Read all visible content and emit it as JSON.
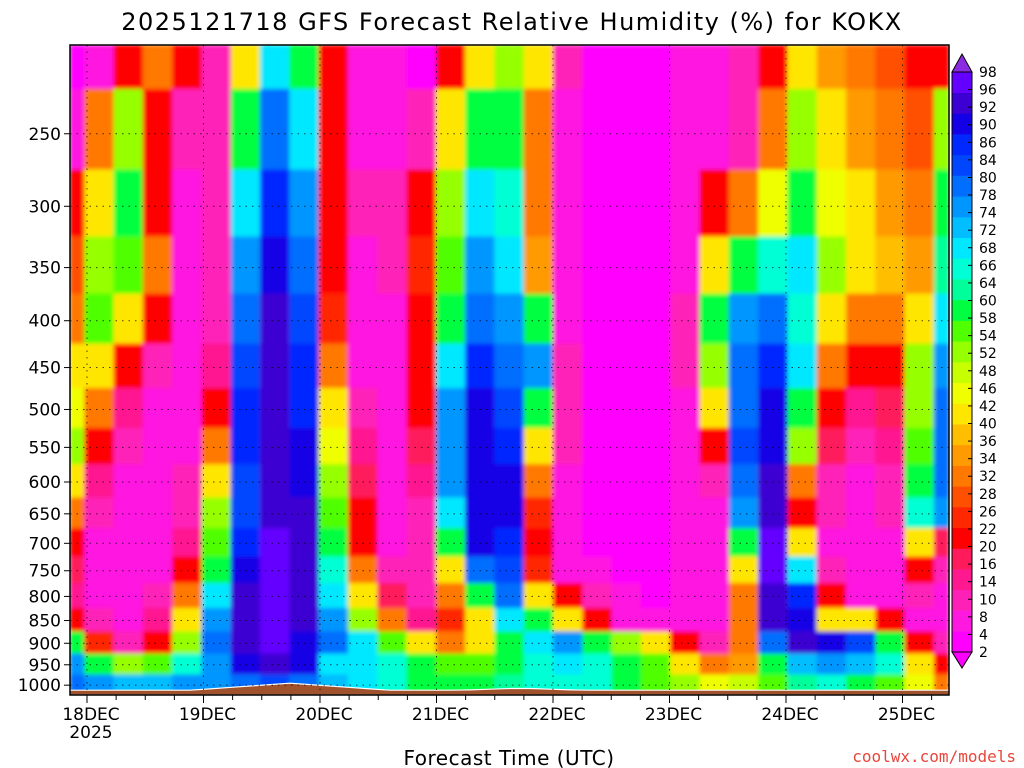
{
  "chart_data": {
    "type": "heatmap",
    "title": "2025121718 GFS Forecast Relative Humidity (%) for KOKX",
    "xlabel": "Forecast Time (UTC)",
    "ylabel": "",
    "watermark": "coolwx.com/models",
    "x_ticks": [
      "18DEC",
      "19DEC",
      "20DEC",
      "21DEC",
      "22DEC",
      "23DEC",
      "24DEC",
      "25DEC"
    ],
    "x_year": "2025",
    "y_ticks": [
      250,
      300,
      350,
      400,
      450,
      500,
      550,
      600,
      650,
      700,
      750,
      800,
      850,
      900,
      950,
      1000
    ],
    "y_scale": "log",
    "y_range_hpa": [
      1025,
      200
    ],
    "colorbar_labels": [
      2,
      4,
      8,
      10,
      14,
      16,
      20,
      22,
      26,
      28,
      32,
      34,
      36,
      40,
      42,
      46,
      48,
      52,
      54,
      58,
      60,
      64,
      66,
      68,
      72,
      74,
      78,
      80,
      84,
      86,
      90,
      92,
      96,
      98
    ],
    "colorbar_colors": [
      "#ff00ff",
      "#ff18e0",
      "#ff20b8",
      "#ff1890",
      "#ff1a5c",
      "#ff0000",
      "#ff2800",
      "#ff5000",
      "#ff7800",
      "#ff9a00",
      "#ffbe00",
      "#ffe600",
      "#f0ff00",
      "#c8ff00",
      "#96ff00",
      "#50ff00",
      "#00ff40",
      "#00ff9a",
      "#00ffd4",
      "#00e8ff",
      "#00beff",
      "#0096ff",
      "#006eff",
      "#0046ff",
      "#0028ff",
      "#1400e6",
      "#3c00d2",
      "#6400ff"
    ],
    "grid": true,
    "terrain_color": "#a0522d",
    "rh_field_pct": {
      "times": [
        "12/17 18Z",
        "12/18 00Z",
        "12/18 06Z",
        "12/18 12Z",
        "12/18 18Z",
        "12/19 00Z",
        "12/19 06Z",
        "12/19 12Z",
        "12/19 18Z",
        "12/20 00Z",
        "12/20 06Z",
        "12/20 12Z",
        "12/20 18Z",
        "12/21 00Z",
        "12/21 06Z",
        "12/21 12Z",
        "12/21 18Z",
        "12/22 00Z",
        "12/22 06Z",
        "12/22 12Z",
        "12/22 18Z",
        "12/23 00Z",
        "12/23 06Z",
        "12/23 12Z",
        "12/23 18Z",
        "12/24 00Z",
        "12/24 06Z",
        "12/24 12Z",
        "12/24 18Z",
        "12/25 00Z",
        "12/25 06Z"
      ],
      "levels_hpa": [
        200,
        250,
        300,
        350,
        400,
        450,
        500,
        550,
        600,
        650,
        700,
        750,
        800,
        850,
        900,
        950,
        1000
      ],
      "values": [
        [
          2,
          8,
          20,
          30,
          20,
          10,
          40,
          70,
          60,
          20,
          8,
          8,
          4,
          20,
          40,
          50,
          40,
          10,
          4,
          4,
          4,
          8,
          8,
          10,
          20,
          40,
          34,
          30,
          26,
          22,
          20
        ],
        [
          8,
          30,
          50,
          20,
          10,
          10,
          60,
          80,
          70,
          20,
          8,
          8,
          10,
          40,
          60,
          60,
          30,
          8,
          4,
          4,
          4,
          8,
          8,
          10,
          30,
          50,
          40,
          34,
          30,
          26,
          50
        ],
        [
          20,
          40,
          60,
          20,
          8,
          10,
          70,
          86,
          74,
          20,
          10,
          10,
          20,
          50,
          70,
          66,
          30,
          8,
          4,
          4,
          4,
          8,
          20,
          30,
          46,
          60,
          44,
          40,
          36,
          30,
          58
        ],
        [
          26,
          50,
          54,
          30,
          8,
          10,
          76,
          90,
          80,
          20,
          8,
          10,
          24,
          54,
          74,
          70,
          36,
          8,
          4,
          4,
          4,
          8,
          40,
          60,
          66,
          70,
          50,
          42,
          38,
          36,
          62
        ],
        [
          30,
          54,
          40,
          20,
          8,
          12,
          80,
          92,
          84,
          24,
          8,
          8,
          20,
          60,
          80,
          76,
          60,
          8,
          4,
          4,
          4,
          10,
          60,
          74,
          78,
          66,
          40,
          30,
          30,
          40,
          70
        ],
        [
          40,
          40,
          20,
          10,
          8,
          14,
          84,
          92,
          86,
          30,
          8,
          8,
          20,
          70,
          86,
          80,
          76,
          10,
          4,
          4,
          4,
          10,
          50,
          80,
          86,
          70,
          30,
          20,
          20,
          50,
          76
        ],
        [
          46,
          30,
          14,
          8,
          8,
          20,
          86,
          92,
          86,
          40,
          10,
          8,
          20,
          74,
          88,
          84,
          60,
          10,
          4,
          4,
          4,
          8,
          40,
          80,
          88,
          60,
          20,
          14,
          16,
          52,
          78
        ],
        [
          50,
          20,
          10,
          8,
          8,
          30,
          86,
          94,
          88,
          46,
          14,
          8,
          16,
          76,
          90,
          86,
          40,
          10,
          4,
          4,
          4,
          8,
          20,
          82,
          90,
          50,
          16,
          10,
          14,
          56,
          80
        ],
        [
          40,
          14,
          8,
          8,
          10,
          40,
          84,
          94,
          90,
          50,
          16,
          8,
          14,
          74,
          90,
          88,
          30,
          8,
          4,
          4,
          4,
          6,
          10,
          80,
          92,
          30,
          10,
          8,
          12,
          60,
          78
        ],
        [
          30,
          10,
          8,
          8,
          12,
          50,
          84,
          94,
          92,
          56,
          20,
          8,
          12,
          70,
          90,
          88,
          24,
          8,
          4,
          4,
          4,
          6,
          8,
          76,
          94,
          20,
          10,
          8,
          10,
          64,
          74
        ],
        [
          20,
          8,
          8,
          8,
          14,
          56,
          86,
          96,
          92,
          60,
          20,
          8,
          10,
          60,
          88,
          86,
          20,
          8,
          4,
          4,
          4,
          6,
          8,
          60,
          96,
          40,
          8,
          8,
          8,
          40,
          16
        ],
        [
          16,
          8,
          8,
          8,
          20,
          60,
          90,
          96,
          94,
          64,
          30,
          10,
          10,
          40,
          80,
          84,
          24,
          8,
          6,
          4,
          4,
          6,
          8,
          40,
          96,
          70,
          10,
          8,
          8,
          20,
          10
        ],
        [
          14,
          8,
          8,
          10,
          30,
          70,
          92,
          96,
          94,
          70,
          40,
          16,
          10,
          30,
          60,
          80,
          40,
          20,
          10,
          6,
          4,
          6,
          8,
          30,
          94,
          86,
          20,
          8,
          8,
          10,
          8
        ],
        [
          20,
          10,
          8,
          14,
          40,
          76,
          94,
          96,
          92,
          74,
          50,
          30,
          14,
          24,
          40,
          70,
          60,
          40,
          20,
          8,
          6,
          6,
          8,
          30,
          92,
          90,
          40,
          40,
          20,
          8,
          8
        ],
        [
          60,
          24,
          10,
          20,
          50,
          80,
          94,
          96,
          90,
          80,
          70,
          56,
          40,
          30,
          40,
          60,
          70,
          76,
          60,
          50,
          40,
          20,
          10,
          30,
          80,
          92,
          88,
          84,
          60,
          20,
          10
        ],
        [
          74,
          60,
          50,
          54,
          66,
          76,
          90,
          94,
          88,
          70,
          70,
          64,
          60,
          54,
          56,
          60,
          66,
          70,
          64,
          60,
          54,
          40,
          30,
          36,
          60,
          72,
          74,
          72,
          64,
          40,
          20
        ],
        [
          78,
          74,
          72,
          72,
          74,
          76,
          80,
          82,
          80,
          72,
          68,
          64,
          60,
          60,
          60,
          62,
          64,
          66,
          64,
          60,
          56,
          50,
          46,
          48,
          56,
          62,
          64,
          60,
          56,
          44,
          30
        ]
      ]
    }
  }
}
